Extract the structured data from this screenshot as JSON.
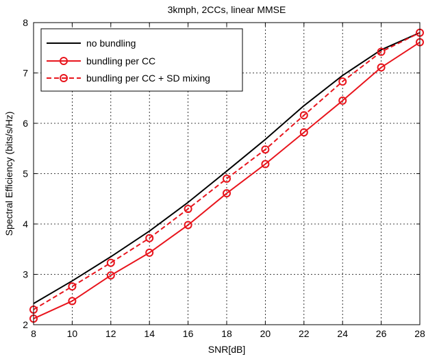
{
  "chart_data": {
    "type": "line",
    "title": "3kmph, 2CCs, linear MMSE",
    "xlabel": "SNR[dB]",
    "ylabel": "Spectral Efficiency (bits/s/Hz)",
    "xlim": [
      8,
      28
    ],
    "ylim": [
      2,
      8
    ],
    "x_ticks": [
      "8",
      "10",
      "12",
      "14",
      "16",
      "18",
      "20",
      "22",
      "24",
      "26",
      "28"
    ],
    "y_ticks": [
      "2",
      "3",
      "4",
      "5",
      "6",
      "7",
      "8"
    ],
    "grid": true,
    "legend_position": "top-left",
    "x": [
      8,
      10,
      12,
      14,
      16,
      18,
      20,
      22,
      24,
      26,
      28
    ],
    "series": [
      {
        "name": "no bundling",
        "color": "#000000",
        "line_style": "solid",
        "marker": "none",
        "values": [
          2.42,
          2.87,
          3.35,
          3.86,
          4.43,
          5.05,
          5.68,
          6.35,
          6.95,
          7.46,
          7.8
        ]
      },
      {
        "name": "bundling per CC",
        "color": "#e8141c",
        "line_style": "solid",
        "marker": "circle",
        "values": [
          2.12,
          2.47,
          2.98,
          3.43,
          3.98,
          4.61,
          5.19,
          5.82,
          6.45,
          7.11,
          7.61
        ]
      },
      {
        "name": "bundling per CC + SD mixing",
        "color": "#e8141c",
        "line_style": "dashed",
        "marker": "circle",
        "values": [
          2.3,
          2.76,
          3.23,
          3.72,
          4.3,
          4.9,
          5.48,
          6.16,
          6.83,
          7.42,
          7.8
        ]
      }
    ]
  }
}
